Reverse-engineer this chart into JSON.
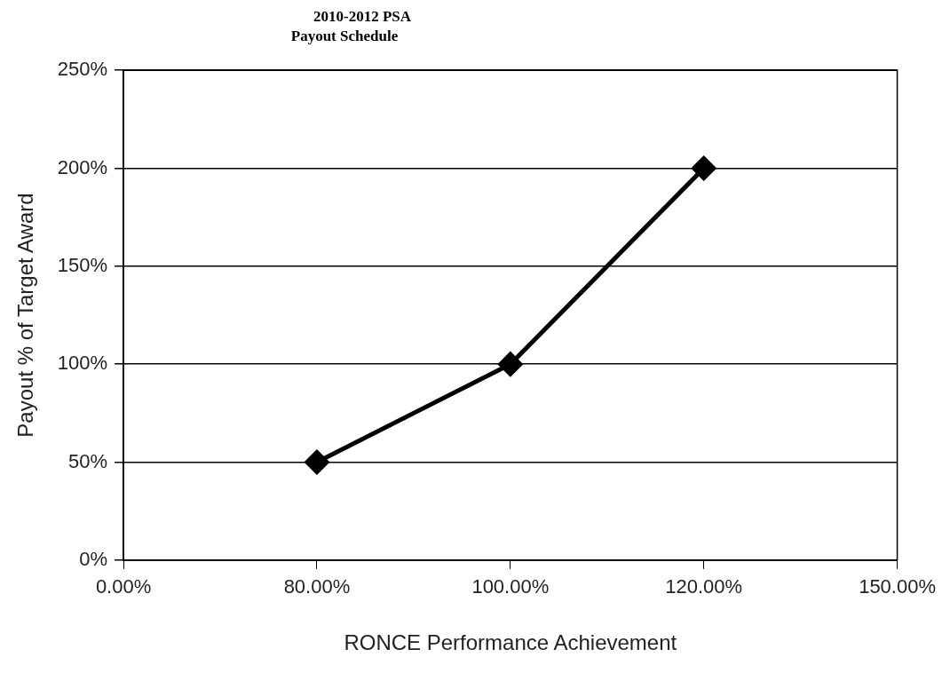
{
  "chart_data": {
    "type": "line",
    "title": "2010-2012 PSA",
    "subtitle": "Payout Schedule",
    "xlabel": "RONCE Performance Achievement",
    "ylabel": "Payout % of Target Award",
    "categories": [
      "0.00%",
      "80.00%",
      "100.00%",
      "120.00%",
      "150.00%"
    ],
    "series": [
      {
        "color": "#000000",
        "values": [
          null,
          50,
          100,
          200,
          null
        ]
      }
    ],
    "ylim": [
      0,
      250
    ],
    "yticks": [
      {
        "value": 0,
        "label": "0%"
      },
      {
        "value": 50,
        "label": "50%"
      },
      {
        "value": 100,
        "label": "100%"
      },
      {
        "value": 150,
        "label": "150%"
      },
      {
        "value": 200,
        "label": "200%"
      },
      {
        "value": 250,
        "label": "250%"
      }
    ],
    "grid": "y",
    "legend": false,
    "marker": "diamond",
    "line_style": "solid"
  }
}
